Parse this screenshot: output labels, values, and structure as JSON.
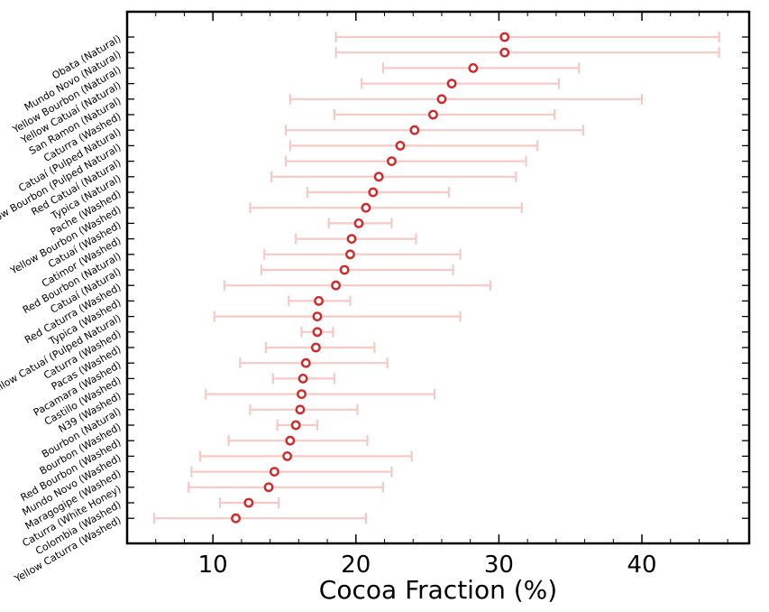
{
  "chart_data": {
    "type": "scatter",
    "xlabel": "Cocoa Fraction (%)",
    "ylabel": "",
    "xlim": [
      4,
      47.5
    ],
    "xticks": [
      10,
      20,
      30,
      40
    ],
    "xtick_labels": [
      "10",
      "20",
      "30",
      "40"
    ],
    "colors": {
      "point": "#d62728",
      "errorbar": "#f7c9c4"
    },
    "series": [
      {
        "name": "Cocoa Fraction",
        "points": [
          {
            "label": "Obata (Natural)",
            "value": 30.4,
            "low": 18.6,
            "high": 45.4
          },
          {
            "label": "Mundo Novo (Natural)",
            "value": 30.4,
            "low": 18.6,
            "high": 45.4
          },
          {
            "label": "Yellow Bourbon (Natural)",
            "value": 28.2,
            "low": 21.9,
            "high": 35.6
          },
          {
            "label": "Yellow Catuaí (Natural)",
            "value": 26.7,
            "low": 20.4,
            "high": 34.2
          },
          {
            "label": "San Ramon (Natural)",
            "value": 26.0,
            "low": 15.4,
            "high": 40.0
          },
          {
            "label": "Caturra (Washed)",
            "value": 25.4,
            "low": 18.5,
            "high": 33.9
          },
          {
            "label": "Catuaí (Pulped Natural)",
            "value": 24.1,
            "low": 15.1,
            "high": 35.9
          },
          {
            "label": "Yellow Bourbon (Pulped Natural)",
            "value": 23.1,
            "low": 15.4,
            "high": 32.7
          },
          {
            "label": "Red Catuaí (Natural)",
            "value": 22.5,
            "low": 15.1,
            "high": 31.9
          },
          {
            "label": "Typica (Natural)",
            "value": 21.6,
            "low": 14.1,
            "high": 31.2
          },
          {
            "label": "Pache (Washed)",
            "value": 21.2,
            "low": 16.6,
            "high": 26.5
          },
          {
            "label": "Yellow Bourbon (Washed)",
            "value": 20.7,
            "low": 12.6,
            "high": 31.6
          },
          {
            "label": "Catuaí (Washed)",
            "value": 20.2,
            "low": 18.1,
            "high": 22.5
          },
          {
            "label": "Catimor (Washed)",
            "value": 19.7,
            "low": 15.8,
            "high": 24.2
          },
          {
            "label": "Red Bourbon (Natural)",
            "value": 19.6,
            "low": 13.6,
            "high": 27.3
          },
          {
            "label": "Catuaí (Natural)",
            "value": 19.2,
            "low": 13.4,
            "high": 26.8
          },
          {
            "label": "Red Caturra (Washed)",
            "value": 18.6,
            "low": 10.8,
            "high": 29.4
          },
          {
            "label": "Typica (Washed)",
            "value": 17.4,
            "low": 15.3,
            "high": 19.6
          },
          {
            "label": "Yellow Catuaí (Pulped Natural)",
            "value": 17.3,
            "low": 10.1,
            "high": 27.3
          },
          {
            "label": "Caturra (Washed)",
            "value": 17.3,
            "low": 16.2,
            "high": 18.4
          },
          {
            "label": "Pacas (Washed)",
            "value": 17.2,
            "low": 13.7,
            "high": 21.3
          },
          {
            "label": "Pacamara (Washed)",
            "value": 16.5,
            "low": 11.9,
            "high": 22.2
          },
          {
            "label": "Castillo (Washed)",
            "value": 16.3,
            "low": 14.2,
            "high": 18.5
          },
          {
            "label": "N39 (Washed)",
            "value": 16.2,
            "low": 9.5,
            "high": 25.5
          },
          {
            "label": "Bourbon (Natural)",
            "value": 16.1,
            "low": 12.6,
            "high": 20.1
          },
          {
            "label": "Bourbon (Washed)",
            "value": 15.8,
            "low": 14.5,
            "high": 17.3
          },
          {
            "label": "Red Bourbon (Washed)",
            "value": 15.4,
            "low": 11.1,
            "high": 20.8
          },
          {
            "label": "Mundo Novo (Washed)",
            "value": 15.2,
            "low": 9.1,
            "high": 23.9
          },
          {
            "label": "Maragogipe (Washed)",
            "value": 14.3,
            "low": 8.5,
            "high": 22.5
          },
          {
            "label": "Caturra (White Honey)",
            "value": 13.9,
            "low": 8.3,
            "high": 21.9
          },
          {
            "label": "Colombia (Washed)",
            "value": 12.5,
            "low": 10.5,
            "high": 14.6
          },
          {
            "label": "Yellow Caturra (Washed)",
            "value": 11.6,
            "low": 5.9,
            "high": 20.7
          }
        ]
      }
    ]
  }
}
